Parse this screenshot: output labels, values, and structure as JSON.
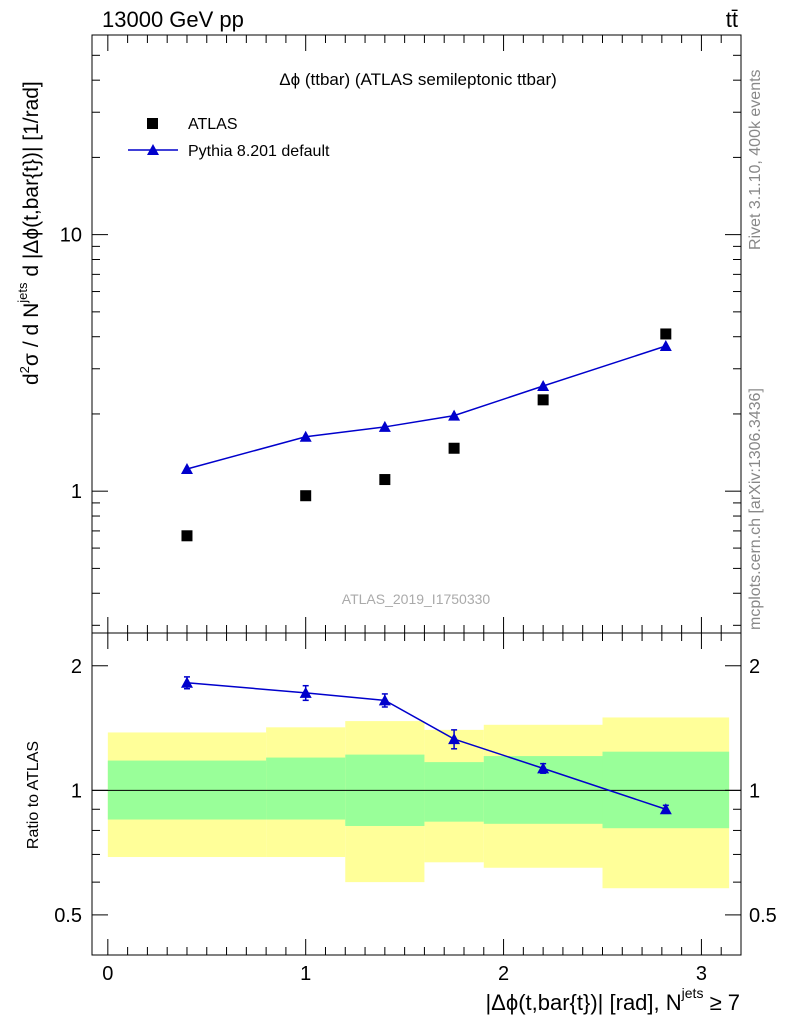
{
  "header": {
    "energy_label": "13000 GeV pp",
    "process_label": "tt̄"
  },
  "side_labels": {
    "rivet": "Rivet 3.1.10,  400k events",
    "mcplots": "mcplots.cern.ch [arXiv:1306.3436]"
  },
  "chart_data": [
    {
      "type": "scatter",
      "title": "Δϕ (ttbar) (ATLAS semileptonic ttbar)",
      "watermark": "ATLAS_2019_I1750330",
      "ylabel_parts": {
        "d": "d",
        "sup2": "2",
        "sigma": "σ",
        "slash": "/  d N",
        "supjets": "jets",
        "rest": " d |Δϕ(t,bar{t})| [1/rad]"
      },
      "yscale": "log",
      "xlim": [
        -0.08,
        3.2
      ],
      "ylim": [
        0.28,
        60
      ],
      "y_tick_labels": [
        {
          "v": 1,
          "t": "1"
        },
        {
          "v": 10,
          "t": "10"
        }
      ],
      "legend": {
        "position": "top-left"
      },
      "series": [
        {
          "name": "ATLAS",
          "kind": "data",
          "marker": "square",
          "color": "#000000",
          "x": [
            0.4,
            1.0,
            1.4,
            1.75,
            2.2,
            2.82
          ],
          "y": [
            0.67,
            0.96,
            1.11,
            1.47,
            2.27,
            4.1
          ]
        },
        {
          "name": "Pythia 8.201 default",
          "kind": "mc",
          "marker": "triangle",
          "color": "#0000cc",
          "x": [
            0.4,
            1.0,
            1.4,
            1.75,
            2.2,
            2.82
          ],
          "y": [
            1.22,
            1.63,
            1.78,
            1.97,
            2.57,
            3.68
          ],
          "yerr": [
            0.02,
            0.06,
            0.06,
            0.08,
            0.05,
            0.06
          ]
        }
      ]
    },
    {
      "type": "scatter",
      "ylabel": "Ratio to ATLAS",
      "yscale": "log",
      "xlim": [
        -0.08,
        3.2
      ],
      "ylim": [
        0.4,
        2.4
      ],
      "xlabel_parts": {
        "main": "|Δϕ(t,bar{t})| [rad], N",
        "sup": "jets",
        "tail": " ≥ 7"
      },
      "x_tick_labels": [
        {
          "v": 0,
          "t": "0"
        },
        {
          "v": 1,
          "t": "1"
        },
        {
          "v": 2,
          "t": "2"
        },
        {
          "v": 3,
          "t": "3"
        }
      ],
      "y_tick_labels": [
        {
          "v": 0.5,
          "t": "0.5"
        },
        {
          "v": 1,
          "t": "1"
        },
        {
          "v": 2,
          "t": "2"
        }
      ],
      "reference_line": 1,
      "bands": {
        "edges": [
          0,
          0.8,
          1.2,
          1.6,
          1.9,
          2.5,
          3.14
        ],
        "yellow_low": [
          0.69,
          0.69,
          0.6,
          0.67,
          0.65,
          0.58
        ],
        "yellow_high": [
          1.38,
          1.42,
          1.47,
          1.4,
          1.44,
          1.5
        ],
        "green_low": [
          0.85,
          0.85,
          0.82,
          0.84,
          0.83,
          0.81
        ],
        "green_high": [
          1.18,
          1.2,
          1.22,
          1.17,
          1.21,
          1.24
        ],
        "yellow_color": "#ffff99",
        "green_color": "#99ff99"
      },
      "series": [
        {
          "name": "Pythia 8.201 default",
          "color": "#0000cc",
          "x": [
            0.4,
            1.0,
            1.4,
            1.75,
            2.2,
            2.82
          ],
          "y": [
            1.82,
            1.72,
            1.65,
            1.33,
            1.13,
            0.9
          ],
          "yerr": [
            0.06,
            0.07,
            0.06,
            0.07,
            0.03,
            0.02
          ]
        }
      ]
    }
  ]
}
